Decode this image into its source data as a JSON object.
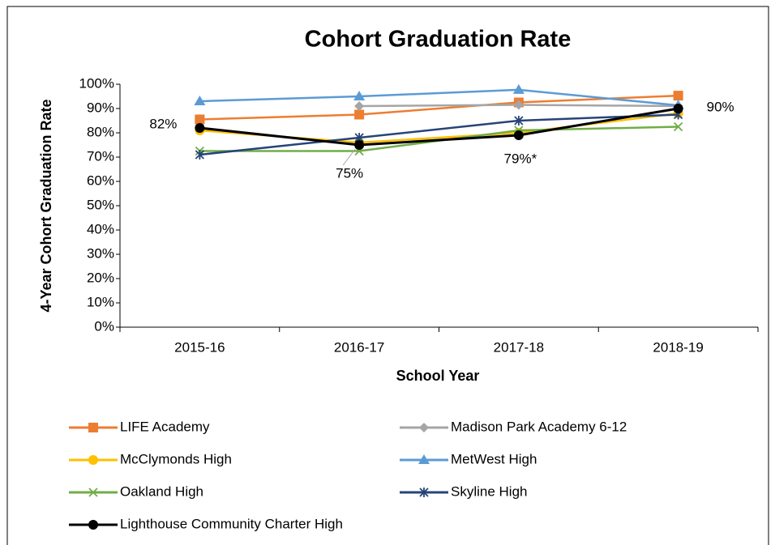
{
  "chart_data": {
    "type": "line",
    "title": "Cohort Graduation Rate",
    "y_label": "4-Year Cohort Graduation Rate",
    "x_label": "School Year",
    "categories": [
      "2015-16",
      "2016-17",
      "2017-18",
      "2018-19"
    ],
    "ylim": [
      0,
      100
    ],
    "yticks": [
      {
        "value": 0,
        "label": "0%"
      },
      {
        "value": 10,
        "label": "10%"
      },
      {
        "value": 20,
        "label": "20%"
      },
      {
        "value": 30,
        "label": "30%"
      },
      {
        "value": 40,
        "label": "40%"
      },
      {
        "value": 50,
        "label": "50%"
      },
      {
        "value": 60,
        "label": "60%"
      },
      {
        "value": 70,
        "label": "70%"
      },
      {
        "value": 80,
        "label": "80%"
      },
      {
        "value": 90,
        "label": "90%"
      },
      {
        "value": 100,
        "label": "100%"
      }
    ],
    "grid": false,
    "legend": "bottom",
    "series": [
      {
        "name": "LIFE Academy",
        "color": "#ED7D31",
        "marker": "square",
        "values": [
          85.5,
          87.5,
          92.5,
          95.3
        ]
      },
      {
        "name": "Madison Park Academy 6-12",
        "color": "#A5A5A5",
        "marker": "diamond",
        "values": [
          null,
          91,
          91.5,
          91
        ]
      },
      {
        "name": "McClymonds High",
        "color": "#FFC000",
        "marker": "circle",
        "values": [
          81,
          76,
          80,
          88
        ]
      },
      {
        "name": "MetWest High",
        "color": "#5B9BD5",
        "marker": "triangle",
        "values": [
          93,
          95,
          97.7,
          91.3
        ]
      },
      {
        "name": "Oakland High",
        "color": "#70AD47",
        "marker": "x",
        "values": [
          72.5,
          72.5,
          81,
          82.5
        ]
      },
      {
        "name": "Skyline High",
        "color": "#264478",
        "marker": "star",
        "values": [
          71,
          78,
          85,
          87.5
        ]
      },
      {
        "name": "Lighthouse Community Charter High",
        "color": "#000000",
        "marker": "circle",
        "values": [
          82,
          75,
          79,
          90
        ],
        "value_labels": [
          "82%",
          "75%",
          "79%*",
          "90%"
        ]
      }
    ]
  }
}
